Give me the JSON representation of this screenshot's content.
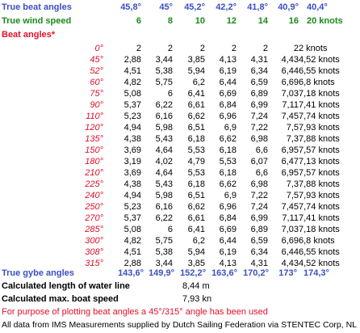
{
  "beat_angles": {
    "label": "True beat angles",
    "values": [
      "45,8°",
      "45°",
      "45,2°",
      "42,2°",
      "41,8°",
      "40,9°",
      "40,4°"
    ]
  },
  "wind_speed": {
    "label": "True wind speed",
    "values": [
      "6",
      "8",
      "10",
      "12",
      "14",
      "16",
      "20 knots"
    ]
  },
  "beat_header": {
    "label": "Beat angles*"
  },
  "rows": [
    {
      "angle": "0°",
      "values": [
        "2",
        "2",
        "2",
        "2",
        "2",
        "2",
        "2 knots"
      ]
    },
    {
      "angle": "45°",
      "values": [
        "2,88",
        "3,44",
        "3,85",
        "4,13",
        "4,31",
        "4,43",
        "4,52 knots"
      ]
    },
    {
      "angle": "52°",
      "values": [
        "4,51",
        "5,38",
        "5,94",
        "6,19",
        "6,34",
        "6,44",
        "6,55 knots"
      ]
    },
    {
      "angle": "60°",
      "values": [
        "4,82",
        "5,75",
        "6,2",
        "6,44",
        "6,59",
        "6,69",
        "6,8 knots"
      ]
    },
    {
      "angle": "75°",
      "values": [
        "5,08",
        "6",
        "6,41",
        "6,69",
        "6,89",
        "7,03",
        "7,18 knots"
      ]
    },
    {
      "angle": "90°",
      "values": [
        "5,37",
        "6,22",
        "6,61",
        "6,84",
        "6,99",
        "7,11",
        "7,41 knots"
      ]
    },
    {
      "angle": "110°",
      "values": [
        "5,23",
        "6,16",
        "6,62",
        "6,96",
        "7,24",
        "7,45",
        "7,74 knots"
      ]
    },
    {
      "angle": "120°",
      "values": [
        "4,94",
        "5,98",
        "6,51",
        "6,9",
        "7,22",
        "7,5",
        "7,93 knots"
      ]
    },
    {
      "angle": "135°",
      "values": [
        "4,38",
        "5,43",
        "6,18",
        "6,62",
        "6,98",
        "7,3",
        "7,88 knots"
      ]
    },
    {
      "angle": "150°",
      "values": [
        "3,69",
        "4,64",
        "5,53",
        "6,18",
        "6,6",
        "6,95",
        "7,57 knots"
      ]
    },
    {
      "angle": "180°",
      "values": [
        "3,19",
        "4,02",
        "4,79",
        "5,53",
        "6,07",
        "6,47",
        "7,13 knots"
      ]
    },
    {
      "angle": "210°",
      "values": [
        "3,69",
        "4,64",
        "5,53",
        "6,18",
        "6,6",
        "6,95",
        "7,57 knots"
      ]
    },
    {
      "angle": "225°",
      "values": [
        "4,38",
        "5,43",
        "6,18",
        "6,62",
        "6,98",
        "7,3",
        "7,88 knots"
      ]
    },
    {
      "angle": "240°",
      "values": [
        "4,94",
        "5,98",
        "6,51",
        "6,9",
        "7,22",
        "7,5",
        "7,93 knots"
      ]
    },
    {
      "angle": "250°",
      "values": [
        "5,23",
        "6,16",
        "6,62",
        "6,96",
        "7,24",
        "7,45",
        "7,74 knots"
      ]
    },
    {
      "angle": "270°",
      "values": [
        "5,37",
        "6,22",
        "6,61",
        "6,84",
        "6,99",
        "7,11",
        "7,41 knots"
      ]
    },
    {
      "angle": "285°",
      "values": [
        "5,08",
        "6",
        "6,41",
        "6,69",
        "6,89",
        "7,03",
        "7,18 knots"
      ]
    },
    {
      "angle": "300°",
      "values": [
        "4,82",
        "5,75",
        "6,2",
        "6,44",
        "6,59",
        "6,69",
        "6,8 knots"
      ]
    },
    {
      "angle": "308°",
      "values": [
        "4,51",
        "5,38",
        "5,94",
        "6,19",
        "6,34",
        "6,44",
        "6,55 knots"
      ]
    },
    {
      "angle": "315°",
      "values": [
        "2,88",
        "3,44",
        "3,85",
        "4,13",
        "4,31",
        "4,43",
        "4,52 knots"
      ]
    }
  ],
  "gybe_angles": {
    "label": "True gybe angles",
    "values": [
      "143,6°",
      "149,9°",
      "152,2°",
      "163,6°",
      "170,2°",
      "173°",
      "174,3°"
    ]
  },
  "waterline": {
    "label": "Calculated length of water line",
    "value": "8,44 m"
  },
  "max_speed": {
    "label": "Calculated max. boat speed",
    "value": "7,93 kn"
  },
  "footnote": "For purpose of plotting beat angles a 45°/315° angle has been used",
  "source": "All data from IMS Measurements supplied by Dutch Sailing Federation via STENTEC Corp, NL",
  "colors": {
    "blue": "#3a4fc4",
    "green": "#1a8a1a",
    "red": "#e0102a"
  }
}
